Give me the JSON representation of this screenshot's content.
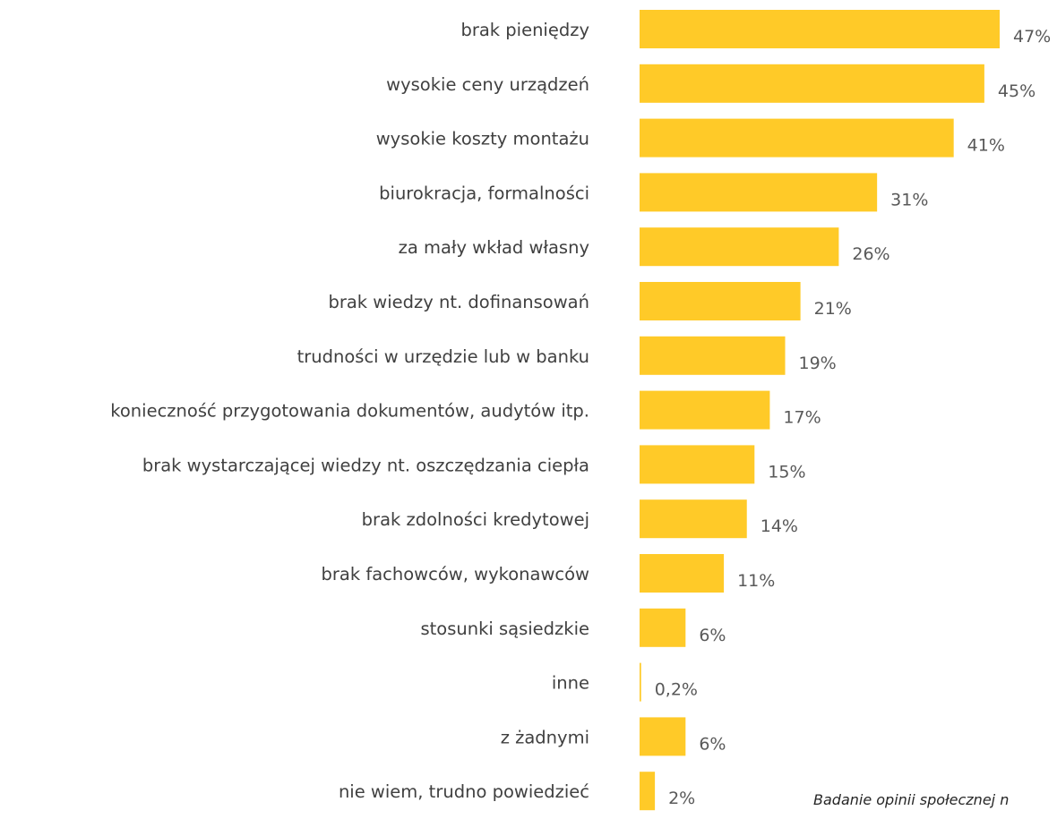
{
  "chart_data": {
    "type": "bar",
    "orientation": "horizontal",
    "categories": [
      "brak pieniędzy",
      "wysokie ceny urządzeń",
      "wysokie koszty montażu",
      "biurokracja, formalności",
      "za mały wkład własny",
      "brak wiedzy nt. dofinansowań",
      "trudności w urzędzie lub w banku",
      "konieczność przygotowania dokumentów, audytów itp.",
      "brak wystarczającej wiedzy nt. oszczędzania ciepła",
      "brak zdolności kredytowej",
      "brak fachowców, wykonawców",
      "stosunki sąsiedzkie",
      "inne",
      "z żadnymi",
      "nie wiem, trudno powiedzieć"
    ],
    "values": [
      47,
      45,
      41,
      31,
      26,
      21,
      19,
      17,
      15,
      14,
      11,
      6,
      0.2,
      6,
      2
    ],
    "value_labels": [
      "47%",
      "45%",
      "41%",
      "31%",
      "26%",
      "21%",
      "19%",
      "17%",
      "15%",
      "14%",
      "11%",
      "6%",
      "0,2%",
      "6%",
      "2%"
    ],
    "unit": "%",
    "bar_color": "#FFCA28",
    "xlim": [
      0,
      47
    ],
    "grid": false,
    "legend": "none"
  },
  "footnote": "Badanie opinii społecznej n"
}
